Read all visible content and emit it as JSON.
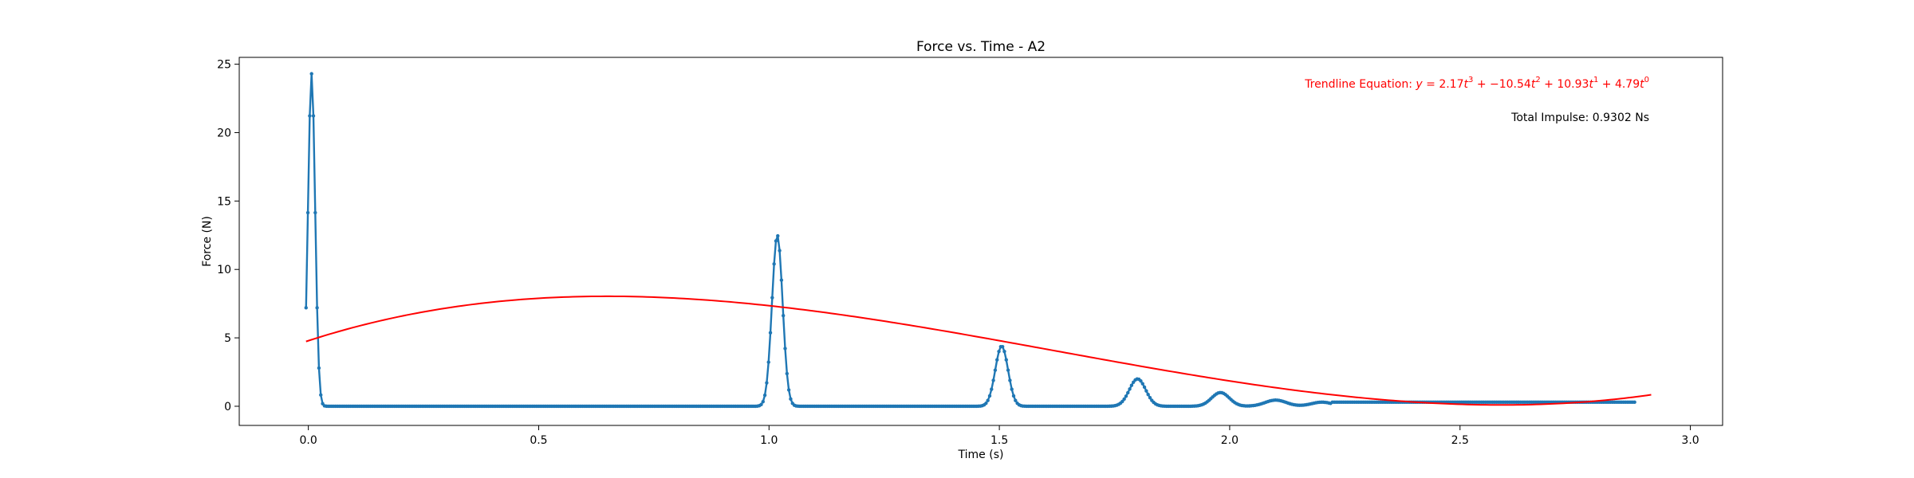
{
  "chart_data": {
    "type": "line",
    "title": "Force vs. Time - A2",
    "xlabel": "Time (s)",
    "ylabel": "Force (N)",
    "xlim": [
      -0.15,
      3.07
    ],
    "ylim": [
      -1.4,
      25.5
    ],
    "x_ticks": [
      0.0,
      0.5,
      1.0,
      1.5,
      2.0,
      2.5,
      3.0
    ],
    "x_tick_labels": [
      "0.0",
      "0.5",
      "1.0",
      "1.5",
      "2.0",
      "2.5",
      "3.0"
    ],
    "y_ticks": [
      0,
      5,
      10,
      15,
      20,
      25
    ],
    "y_tick_labels": [
      "0",
      "5",
      "10",
      "15",
      "20",
      "25"
    ],
    "grid": false,
    "colors": {
      "data": "#1f77b4",
      "trend": "#ff0000",
      "text": "#000000"
    },
    "series": [
      {
        "kind": "measured",
        "marker": "dot",
        "x_start": -0.005,
        "x_end": 2.88,
        "sample_step": 0.004,
        "baseline": 0.0,
        "tail_level": 0.3,
        "impacts": [
          {
            "t": 0.007,
            "peak": 24.3,
            "width": 0.02
          },
          {
            "t": 1.018,
            "peak": 12.5,
            "width": 0.03
          },
          {
            "t": 1.505,
            "peak": 4.4,
            "width": 0.036
          },
          {
            "t": 1.8,
            "peak": 2.0,
            "width": 0.046
          },
          {
            "t": 1.98,
            "peak": 1.0,
            "width": 0.05
          },
          {
            "t": 2.1,
            "peak": 0.45,
            "width": 0.06
          },
          {
            "t": 2.2,
            "peak": 0.3,
            "width": 0.06
          }
        ]
      },
      {
        "kind": "trendline",
        "coefficients": [
          2.17,
          -10.54,
          10.93,
          4.79
        ],
        "x_start": -0.005,
        "x_end": 2.92
      }
    ],
    "annotations": {
      "equation_prefix": "Trendline Equation: ",
      "equation_terms": [
        {
          "coef": "2.17",
          "power": "3",
          "sep": " + "
        },
        {
          "coef": "−10.54",
          "power": "2",
          "sep": " + "
        },
        {
          "coef": "10.93",
          "power": "1",
          "sep": " + "
        },
        {
          "coef": "4.79",
          "power": "0",
          "sep": ""
        }
      ],
      "impulse": "Total Impulse: 0.9302 Ns"
    }
  }
}
